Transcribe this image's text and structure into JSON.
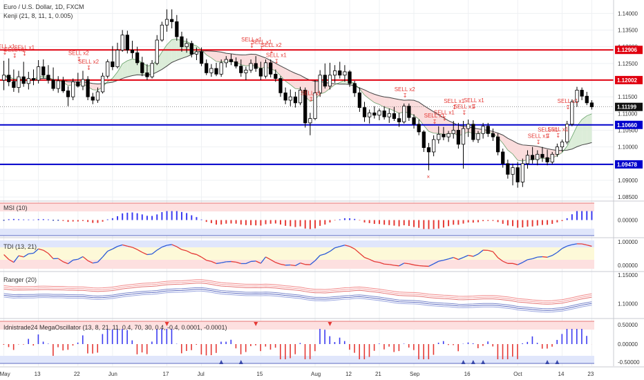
{
  "header": {
    "title": "Euro / U.S. Dollar, 1D, FXCM",
    "indicator": "Kenji (21, 8, 11, 1, 0.005)"
  },
  "colors": {
    "bg": "#ffffff",
    "grid": "#eef0f3",
    "up": "#ffffff",
    "down": "#000000",
    "red_line": "#e0000f",
    "blue_line": "#0000cc",
    "sell": "#e53935",
    "pos_bar": "#3a3af0",
    "neg_bar": "#e53935"
  },
  "x_axis": {
    "labels": [
      "May",
      "13",
      "22",
      "Jun",
      "17",
      "Jul",
      "15",
      "Aug",
      "12",
      "21",
      "Sep",
      "16",
      "Oct",
      "14",
      "23"
    ]
  },
  "main_panel": {
    "y_ticks": [
      "1.14000",
      "1.13500",
      "1.13000",
      "1.12500",
      "1.12000",
      "1.11500",
      "1.11000",
      "1.10500",
      "1.10000",
      "1.09500",
      "1.09000",
      "1.08500"
    ],
    "levels": [
      {
        "value": 1.12906,
        "label": "1.12906",
        "kind": "red"
      },
      {
        "value": 1.12002,
        "label": "1.12002",
        "kind": "red"
      },
      {
        "value": 1.1066,
        "label": "1.10660",
        "kind": "blue"
      },
      {
        "value": 1.09478,
        "label": "1.09478",
        "kind": "blue"
      }
    ],
    "last_price": {
      "value": 1.11199,
      "label": "1.11199"
    }
  },
  "signals": [
    {
      "text": "SELL x1",
      "i": 0
    },
    {
      "text": "SELL x1",
      "i": 2
    },
    {
      "text": "SELL x1",
      "i": 4
    },
    {
      "text": "SELL x2",
      "i": 15
    },
    {
      "text": "SELL x2",
      "i": 17
    },
    {
      "text": "SELL x1",
      "i": 50
    },
    {
      "text": "SELL x2",
      "i": 54
    },
    {
      "text": "SELL x1",
      "i": 52
    },
    {
      "text": "SELL x1",
      "i": 55
    },
    {
      "text": "SELL x1",
      "i": 62
    },
    {
      "text": "SELL x2",
      "i": 81
    },
    {
      "text": "SELL x1",
      "i": 87
    },
    {
      "text": "SELL x1",
      "i": 89
    },
    {
      "text": "SELL x1",
      "i": 91
    },
    {
      "text": "SELL x1",
      "i": 93
    },
    {
      "text": "SELL x1",
      "i": 95
    },
    {
      "text": "SELL x1",
      "i": 108
    },
    {
      "text": "SELL x1",
      "i": 110
    },
    {
      "text": "SELL x1",
      "i": 112
    },
    {
      "text": "SELL x1",
      "i": 114
    }
  ],
  "chart_data": {
    "type": "candlestick",
    "x_labels": [
      "May",
      "13",
      "22",
      "Jun",
      "17",
      "Jul",
      "15",
      "Aug",
      "12",
      "21",
      "Sep",
      "16",
      "Oct",
      "14",
      "23"
    ],
    "y_range": [
      1.084,
      1.144
    ],
    "series": [
      {
        "o": 1.12,
        "h": 1.1258,
        "l": 1.117,
        "c": 1.1215
      },
      {
        "o": 1.1215,
        "h": 1.1265,
        "l": 1.1182,
        "c": 1.1195
      },
      {
        "o": 1.1195,
        "h": 1.1232,
        "l": 1.1165,
        "c": 1.1178
      },
      {
        "o": 1.1178,
        "h": 1.1228,
        "l": 1.1162,
        "c": 1.121
      },
      {
        "o": 1.121,
        "h": 1.1255,
        "l": 1.118,
        "c": 1.119
      },
      {
        "o": 1.119,
        "h": 1.1225,
        "l": 1.1172,
        "c": 1.1205
      },
      {
        "o": 1.1205,
        "h": 1.1232,
        "l": 1.1185,
        "c": 1.12
      },
      {
        "o": 1.12,
        "h": 1.126,
        "l": 1.119,
        "c": 1.124
      },
      {
        "o": 1.124,
        "h": 1.1262,
        "l": 1.1205,
        "c": 1.1215
      },
      {
        "o": 1.1215,
        "h": 1.1245,
        "l": 1.119,
        "c": 1.12
      },
      {
        "o": 1.12,
        "h": 1.1238,
        "l": 1.1168,
        "c": 1.1175
      },
      {
        "o": 1.1175,
        "h": 1.1212,
        "l": 1.1162,
        "c": 1.1198
      },
      {
        "o": 1.1198,
        "h": 1.121,
        "l": 1.1162,
        "c": 1.1168
      },
      {
        "o": 1.1168,
        "h": 1.1182,
        "l": 1.1122,
        "c": 1.115
      },
      {
        "o": 1.115,
        "h": 1.1205,
        "l": 1.114,
        "c": 1.1195
      },
      {
        "o": 1.1195,
        "h": 1.1222,
        "l": 1.1178,
        "c": 1.1182
      },
      {
        "o": 1.1182,
        "h": 1.1228,
        "l": 1.117,
        "c": 1.1202
      },
      {
        "o": 1.1202,
        "h": 1.1212,
        "l": 1.114,
        "c": 1.115
      },
      {
        "o": 1.115,
        "h": 1.1162,
        "l": 1.1128,
        "c": 1.114
      },
      {
        "o": 1.114,
        "h": 1.1178,
        "l": 1.1132,
        "c": 1.1165
      },
      {
        "o": 1.1165,
        "h": 1.1222,
        "l": 1.116,
        "c": 1.1212
      },
      {
        "o": 1.1212,
        "h": 1.1262,
        "l": 1.1205,
        "c": 1.1255
      },
      {
        "o": 1.1255,
        "h": 1.1302,
        "l": 1.123,
        "c": 1.124
      },
      {
        "o": 1.124,
        "h": 1.1312,
        "l": 1.1235,
        "c": 1.129
      },
      {
        "o": 1.129,
        "h": 1.135,
        "l": 1.1285,
        "c": 1.1335
      },
      {
        "o": 1.1335,
        "h": 1.1348,
        "l": 1.128,
        "c": 1.129
      },
      {
        "o": 1.129,
        "h": 1.1318,
        "l": 1.1265,
        "c": 1.1282
      },
      {
        "o": 1.1282,
        "h": 1.13,
        "l": 1.1245,
        "c": 1.1252
      },
      {
        "o": 1.1252,
        "h": 1.127,
        "l": 1.1212,
        "c": 1.1222
      },
      {
        "o": 1.1222,
        "h": 1.1248,
        "l": 1.12,
        "c": 1.121
      },
      {
        "o": 1.121,
        "h": 1.126,
        "l": 1.1205,
        "c": 1.125
      },
      {
        "o": 1.125,
        "h": 1.1335,
        "l": 1.1245,
        "c": 1.132
      },
      {
        "o": 1.132,
        "h": 1.1375,
        "l": 1.1315,
        "c": 1.1365
      },
      {
        "o": 1.1365,
        "h": 1.1412,
        "l": 1.1345,
        "c": 1.1382
      },
      {
        "o": 1.1382,
        "h": 1.1412,
        "l": 1.1355,
        "c": 1.1375
      },
      {
        "o": 1.1375,
        "h": 1.1395,
        "l": 1.1318,
        "c": 1.133
      },
      {
        "o": 1.133,
        "h": 1.1345,
        "l": 1.1285,
        "c": 1.13
      },
      {
        "o": 1.13,
        "h": 1.1325,
        "l": 1.1282,
        "c": 1.131
      },
      {
        "o": 1.131,
        "h": 1.1318,
        "l": 1.1268,
        "c": 1.1278
      },
      {
        "o": 1.1278,
        "h": 1.1298,
        "l": 1.126,
        "c": 1.1285
      },
      {
        "o": 1.1285,
        "h": 1.1298,
        "l": 1.1242,
        "c": 1.125
      },
      {
        "o": 1.125,
        "h": 1.1262,
        "l": 1.1215,
        "c": 1.1222
      },
      {
        "o": 1.1222,
        "h": 1.1248,
        "l": 1.121,
        "c": 1.1235
      },
      {
        "o": 1.1235,
        "h": 1.1252,
        "l": 1.1212,
        "c": 1.1218
      },
      {
        "o": 1.1218,
        "h": 1.1262,
        "l": 1.121,
        "c": 1.1252
      },
      {
        "o": 1.1252,
        "h": 1.1272,
        "l": 1.1238,
        "c": 1.1262
      },
      {
        "o": 1.1262,
        "h": 1.1278,
        "l": 1.1245,
        "c": 1.1255
      },
      {
        "o": 1.1255,
        "h": 1.1268,
        "l": 1.1235,
        "c": 1.1242
      },
      {
        "o": 1.1242,
        "h": 1.1262,
        "l": 1.121,
        "c": 1.1222
      },
      {
        "o": 1.1222,
        "h": 1.124,
        "l": 1.12,
        "c": 1.123
      },
      {
        "o": 1.123,
        "h": 1.1262,
        "l": 1.1222,
        "c": 1.125
      },
      {
        "o": 1.125,
        "h": 1.1272,
        "l": 1.1225,
        "c": 1.1235
      },
      {
        "o": 1.1235,
        "h": 1.1255,
        "l": 1.12,
        "c": 1.1212
      },
      {
        "o": 1.1212,
        "h": 1.1262,
        "l": 1.1205,
        "c": 1.1252
      },
      {
        "o": 1.1252,
        "h": 1.1262,
        "l": 1.1208,
        "c": 1.1218
      },
      {
        "o": 1.1218,
        "h": 1.1232,
        "l": 1.1195,
        "c": 1.1205
      },
      {
        "o": 1.1205,
        "h": 1.1212,
        "l": 1.115,
        "c": 1.1162
      },
      {
        "o": 1.1162,
        "h": 1.1178,
        "l": 1.1128,
        "c": 1.114
      },
      {
        "o": 1.114,
        "h": 1.1172,
        "l": 1.1122,
        "c": 1.115
      },
      {
        "o": 1.115,
        "h": 1.1165,
        "l": 1.1118,
        "c": 1.1132
      },
      {
        "o": 1.1132,
        "h": 1.118,
        "l": 1.1125,
        "c": 1.117
      },
      {
        "o": 1.117,
        "h": 1.1178,
        "l": 1.1058,
        "c": 1.1072
      },
      {
        "o": 1.1072,
        "h": 1.1102,
        "l": 1.1035,
        "c": 1.1085
      },
      {
        "o": 1.1085,
        "h": 1.12,
        "l": 1.108,
        "c": 1.1162
      },
      {
        "o": 1.1162,
        "h": 1.123,
        "l": 1.115,
        "c": 1.1215
      },
      {
        "o": 1.1215,
        "h": 1.125,
        "l": 1.1175,
        "c": 1.1182
      },
      {
        "o": 1.1182,
        "h": 1.1252,
        "l": 1.1172,
        "c": 1.1215
      },
      {
        "o": 1.1215,
        "h": 1.1245,
        "l": 1.1192,
        "c": 1.1228
      },
      {
        "o": 1.1228,
        "h": 1.1255,
        "l": 1.1205,
        "c": 1.1215
      },
      {
        "o": 1.1215,
        "h": 1.1245,
        "l": 1.1195,
        "c": 1.1225
      },
      {
        "o": 1.1225,
        "h": 1.123,
        "l": 1.118,
        "c": 1.119
      },
      {
        "o": 1.119,
        "h": 1.1198,
        "l": 1.115,
        "c": 1.1162
      },
      {
        "o": 1.1162,
        "h": 1.1178,
        "l": 1.1105,
        "c": 1.1118
      },
      {
        "o": 1.1118,
        "h": 1.1135,
        "l": 1.1075,
        "c": 1.109
      },
      {
        "o": 1.109,
        "h": 1.1112,
        "l": 1.107,
        "c": 1.1102
      },
      {
        "o": 1.1102,
        "h": 1.1122,
        "l": 1.1085,
        "c": 1.1095
      },
      {
        "o": 1.1095,
        "h": 1.1115,
        "l": 1.108,
        "c": 1.1108
      },
      {
        "o": 1.1108,
        "h": 1.1122,
        "l": 1.1082,
        "c": 1.109
      },
      {
        "o": 1.109,
        "h": 1.1115,
        "l": 1.1072,
        "c": 1.11
      },
      {
        "o": 1.11,
        "h": 1.112,
        "l": 1.1078,
        "c": 1.1085
      },
      {
        "o": 1.1085,
        "h": 1.1102,
        "l": 1.106,
        "c": 1.1075
      },
      {
        "o": 1.1075,
        "h": 1.113,
        "l": 1.107,
        "c": 1.1122
      },
      {
        "o": 1.1122,
        "h": 1.113,
        "l": 1.1078,
        "c": 1.1088
      },
      {
        "o": 1.1088,
        "h": 1.1098,
        "l": 1.1055,
        "c": 1.1068
      },
      {
        "o": 1.1068,
        "h": 1.1082,
        "l": 1.1035,
        "c": 1.1045
      },
      {
        "o": 1.1045,
        "h": 1.105,
        "l": 1.0985,
        "c": 1.0998
      },
      {
        "o": 1.0998,
        "h": 1.1012,
        "l": 1.093,
        "c": 1.0985
      },
      {
        "o": 1.0985,
        "h": 1.1035,
        "l": 1.0972,
        "c": 1.1022
      },
      {
        "o": 1.1022,
        "h": 1.1062,
        "l": 1.101,
        "c": 1.1038
      },
      {
        "o": 1.1038,
        "h": 1.106,
        "l": 1.102,
        "c": 1.103
      },
      {
        "o": 1.103,
        "h": 1.1048,
        "l": 1.1015,
        "c": 1.104
      },
      {
        "o": 1.104,
        "h": 1.1078,
        "l": 1.1025,
        "c": 1.105
      },
      {
        "o": 1.105,
        "h": 1.1072,
        "l": 1.0995,
        "c": 1.1008
      },
      {
        "o": 1.1008,
        "h": 1.1078,
        "l": 1.0935,
        "c": 1.1055
      },
      {
        "o": 1.1055,
        "h": 1.1082,
        "l": 1.103,
        "c": 1.1068
      },
      {
        "o": 1.1068,
        "h": 1.108,
        "l": 1.1015,
        "c": 1.1022
      },
      {
        "o": 1.1022,
        "h": 1.1048,
        "l": 1.1012,
        "c": 1.104
      },
      {
        "o": 1.104,
        "h": 1.1072,
        "l": 1.1025,
        "c": 1.1062
      },
      {
        "o": 1.1062,
        "h": 1.1072,
        "l": 1.103,
        "c": 1.104
      },
      {
        "o": 1.104,
        "h": 1.1055,
        "l": 1.1018,
        "c": 1.103
      },
      {
        "o": 1.103,
        "h": 1.104,
        "l": 1.0975,
        "c": 1.0985
      },
      {
        "o": 1.0985,
        "h": 1.0995,
        "l": 1.0938,
        "c": 1.095
      },
      {
        "o": 1.095,
        "h": 1.0962,
        "l": 1.0905,
        "c": 1.0918
      },
      {
        "o": 1.0918,
        "h": 1.095,
        "l": 1.0885,
        "c": 1.0938
      },
      {
        "o": 1.0938,
        "h": 1.0955,
        "l": 1.0878,
        "c": 1.0895
      },
      {
        "o": 1.0895,
        "h": 1.0965,
        "l": 1.088,
        "c": 1.095
      },
      {
        "o": 1.095,
        "h": 1.099,
        "l": 1.0935,
        "c": 1.0975
      },
      {
        "o": 1.0975,
        "h": 1.1,
        "l": 1.095,
        "c": 1.0962
      },
      {
        "o": 1.0962,
        "h": 1.099,
        "l": 1.0945,
        "c": 1.0978
      },
      {
        "o": 1.0978,
        "h": 1.1,
        "l": 1.0955,
        "c": 1.0968
      },
      {
        "o": 1.0968,
        "h": 1.0992,
        "l": 1.0945,
        "c": 1.0955
      },
      {
        "o": 1.0955,
        "h": 1.0985,
        "l": 1.0948,
        "c": 1.0978
      },
      {
        "o": 1.0978,
        "h": 1.101,
        "l": 1.097,
        "c": 1.1
      },
      {
        "o": 1.1,
        "h": 1.1022,
        "l": 1.0985,
        "c": 1.1015
      },
      {
        "o": 1.1015,
        "h": 1.1078,
        "l": 1.1008,
        "c": 1.1068
      },
      {
        "o": 1.1068,
        "h": 1.1142,
        "l": 1.1062,
        "c": 1.1135
      },
      {
        "o": 1.1135,
        "h": 1.118,
        "l": 1.112,
        "c": 1.117
      },
      {
        "o": 1.117,
        "h": 1.1178,
        "l": 1.114,
        "c": 1.1152
      },
      {
        "o": 1.1152,
        "h": 1.1165,
        "l": 1.1125,
        "c": 1.1132
      },
      {
        "o": 1.1132,
        "h": 1.114,
        "l": 1.1112,
        "c": 1.112
      }
    ]
  },
  "msi_panel": {
    "title": "MSI (10)",
    "y_ticks": [
      "0.00000"
    ]
  },
  "tdi_panel": {
    "title": "TDI (13, 21)",
    "y_ticks": [
      "1.00000",
      "0.00000"
    ]
  },
  "ranger_panel": {
    "title": "Ranger (20)",
    "y_ticks": [
      "1.15000",
      "1.10000"
    ]
  },
  "mega_panel": {
    "title": "Idnistrade24 MegaOscillator (13, 8, 21, 11, 0.4, 70, 30, 0.4, -0.4, 0.0001, -0.0001)",
    "y_ticks": [
      "0.50000",
      "0.00000",
      "-0.50000"
    ]
  }
}
